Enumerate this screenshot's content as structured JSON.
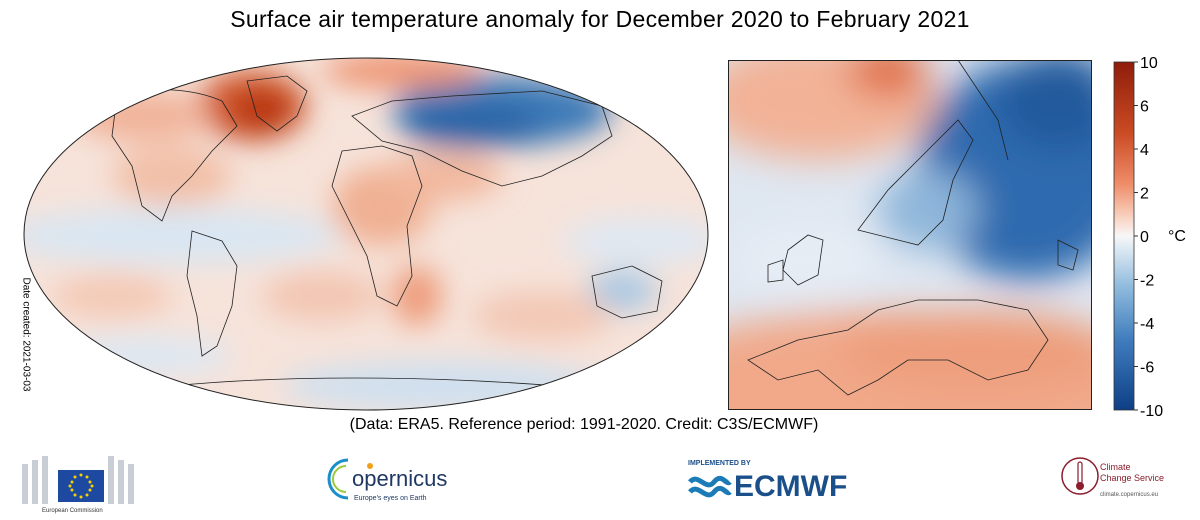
{
  "title": "Surface air temperature anomaly for December 2020 to February 2021",
  "date_created": "Date created: 2021-03-03",
  "credit": "(Data: ERA5.  Reference period: 1991-2020.  Credit: C3S/ECMWF)",
  "colorbar": {
    "unit": "°C",
    "ticks": [
      "10",
      "6",
      "4",
      "2",
      "0",
      "-2",
      "-4",
      "-6",
      "-10"
    ]
  },
  "logos": {
    "eu": "European Commission",
    "copernicus_name": "opernicus",
    "copernicus_tagline": "Europe's eyes on Earth",
    "ecmwf_implemented": "IMPLEMENTED BY",
    "ecmwf_name": "ECMWF",
    "c3s_line1": "Climate",
    "c3s_line2": "Change Service",
    "c3s_line3": "climate.copernicus.eu"
  },
  "colors": {
    "warm_strong": "#b2300e",
    "warm": "#f4a582",
    "neutral": "#f7f7f7",
    "cool": "#92c5de",
    "cool_strong": "#1f5fa8"
  }
}
